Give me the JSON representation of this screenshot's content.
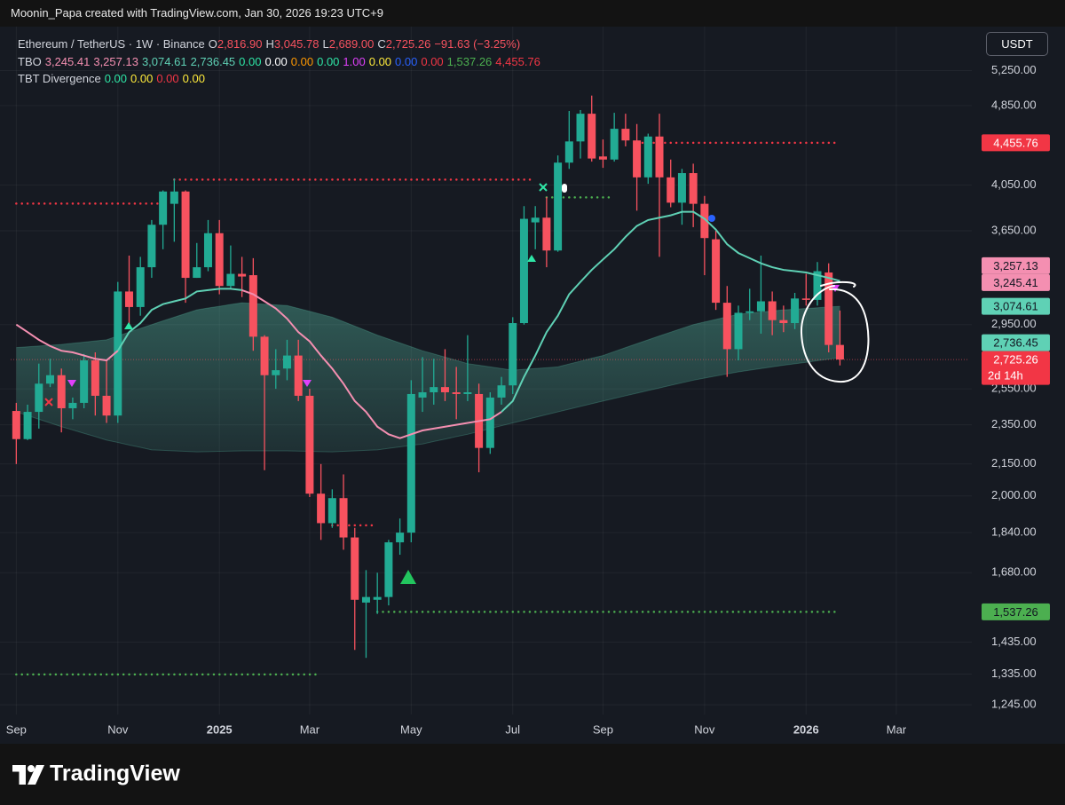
{
  "header": {
    "credit": "Moonin_Papa created with TradingView.com, Jan 30, 2026 19:23 UTC+9"
  },
  "legend": {
    "symbol": "Ethereum / TetherUS · 1W · Binance",
    "ohlc": [
      {
        "key": "O",
        "text": "2,816.90"
      },
      {
        "key": "H",
        "text": "3,045.78"
      },
      {
        "key": "L",
        "text": "2,689.00"
      },
      {
        "key": "C",
        "text": "2,725.26"
      }
    ],
    "change": "−91.63 (−3.25%)",
    "color": "#f7525f"
  },
  "indicators": [
    {
      "name": "TBO",
      "values": [
        {
          "text": "3,245.41",
          "color": "#f48fb1"
        },
        {
          "text": "3,257.13",
          "color": "#f48fb1"
        },
        {
          "text": "3,074.61",
          "color": "#5fd1b5"
        },
        {
          "text": "2,736.45",
          "color": "#5fd1b5"
        },
        {
          "text": "0.00",
          "color": "#2ee6a6"
        },
        {
          "text": "0.00",
          "color": "#ffffff"
        },
        {
          "text": "0.00",
          "color": "#ff9800"
        },
        {
          "text": "0.00",
          "color": "#2ee6a6"
        },
        {
          "text": "1.00",
          "color": "#e040fb"
        },
        {
          "text": "0.00",
          "color": "#ffeb3b"
        },
        {
          "text": "0.00",
          "color": "#2962ff"
        },
        {
          "text": "0.00",
          "color": "#f23645"
        },
        {
          "text": "1,537.26",
          "color": "#4caf50"
        },
        {
          "text": "4,455.76",
          "color": "#f23645"
        }
      ]
    },
    {
      "name": "TBT Divergence",
      "values": [
        {
          "text": "0.00",
          "color": "#2ee6a6"
        },
        {
          "text": "0.00",
          "color": "#ffeb3b"
        },
        {
          "text": "0.00",
          "color": "#f23645"
        },
        {
          "text": "0.00",
          "color": "#ffeb3b"
        }
      ]
    }
  ],
  "currency": "USDT",
  "footer": {
    "brand": "TradingView"
  },
  "chart_data": {
    "type": "candlestick",
    "log_scale": true,
    "grid": true,
    "up_color": "#22ab94",
    "down_color": "#f7525f",
    "xlim": [
      -0.5,
      83.9
    ],
    "xticks": [
      {
        "value": 0,
        "label": "Sep"
      },
      {
        "value": 9,
        "label": "Nov"
      },
      {
        "value": 18,
        "label": "2025"
      },
      {
        "value": 26,
        "label": "Mar"
      },
      {
        "value": 35,
        "label": "May"
      },
      {
        "value": 44,
        "label": "Jul"
      },
      {
        "value": 52,
        "label": "Sep"
      },
      {
        "value": 61,
        "label": "Nov"
      },
      {
        "value": 70,
        "label": "2026"
      },
      {
        "value": 78,
        "label": "Mar"
      }
    ],
    "ylim": [
      1218,
      5800
    ],
    "yticks": [
      {
        "value": 5250,
        "label": "5,250.00"
      },
      {
        "value": 4850,
        "label": "4,850.00"
      },
      {
        "value": 4050,
        "label": "4,050.00"
      },
      {
        "value": 3650,
        "label": "3,650.00"
      },
      {
        "value": 2950,
        "label": "2,950.00"
      },
      {
        "value": 2550,
        "label": "2,550.00"
      },
      {
        "value": 2350,
        "label": "2,350.00"
      },
      {
        "value": 2150,
        "label": "2,150.00"
      },
      {
        "value": 2000,
        "label": "2,000.00"
      },
      {
        "value": 1840,
        "label": "1,840.00"
      },
      {
        "value": 1680,
        "label": "1,680.00"
      },
      {
        "value": 1435,
        "label": "1,435.00"
      },
      {
        "value": 1335,
        "label": "1,335.00"
      },
      {
        "value": 1245,
        "label": "1,245.00"
      }
    ],
    "open": [
      2425,
      2275,
      2420,
      2580,
      2630,
      2440,
      2470,
      2720,
      2510,
      2400,
      3180,
      3070,
      3360,
      3700,
      3880,
      3990,
      3280,
      3360,
      3630,
      3220,
      3310,
      3300,
      2870,
      2630,
      2670,
      2750,
      2510,
      2010,
      1880,
      1990,
      1820,
      1570,
      1580,
      1590,
      1800,
      1840,
      2500,
      2530,
      2560,
      2530,
      2520,
      2520,
      2230,
      2500,
      2570,
      2960,
      3720,
      3760,
      3490,
      4260,
      4470,
      4760,
      4320,
      4290,
      4600,
      4480,
      4120,
      4520,
      4120,
      3890,
      4160,
      3880,
      3580,
      3100,
      2790,
      3030,
      3040,
      3110,
      2980,
      2960,
      3130,
      3120,
      3320,
      2816.9
    ],
    "high": [
      2470,
      2460,
      2700,
      2730,
      2670,
      2500,
      2760,
      2770,
      2720,
      3250,
      3450,
      3440,
      3740,
      4000,
      4110,
      4000,
      3550,
      3740,
      3740,
      3530,
      3440,
      3430,
      2880,
      2790,
      2850,
      2850,
      2550,
      2150,
      2030,
      2100,
      1860,
      1690,
      1680,
      1810,
      1900,
      2600,
      2740,
      2730,
      2790,
      2680,
      2880,
      2580,
      2530,
      2620,
      3000,
      3860,
      3860,
      3940,
      4330,
      4790,
      4800,
      4960,
      4490,
      4770,
      4760,
      4650,
      4550,
      4760,
      4290,
      4200,
      4250,
      3950,
      3650,
      3220,
      3080,
      3200,
      3450,
      3180,
      3080,
      3170,
      3310,
      3400,
      3390,
      3045.78
    ],
    "low": [
      2150,
      2270,
      2330,
      2560,
      2310,
      2380,
      2440,
      2400,
      2360,
      2360,
      2950,
      3010,
      3280,
      3500,
      3560,
      3100,
      3280,
      3330,
      3160,
      3200,
      3140,
      2780,
      2120,
      2550,
      2600,
      2480,
      1995,
      1810,
      1860,
      1770,
      1410,
      1385,
      1530,
      1560,
      1750,
      1800,
      2420,
      2460,
      2480,
      2380,
      2480,
      2110,
      2200,
      2460,
      2520,
      2950,
      3500,
      3360,
      3480,
      4200,
      4300,
      4270,
      4210,
      4270,
      4420,
      3820,
      4060,
      3440,
      3850,
      3700,
      3680,
      3300,
      3050,
      2620,
      2720,
      2980,
      2890,
      2880,
      2900,
      2920,
      3080,
      3080,
      2770,
      2689
    ],
    "close": [
      2275,
      2420,
      2580,
      2630,
      2440,
      2470,
      2720,
      2510,
      2400,
      3180,
      3070,
      3360,
      3700,
      3990,
      3990,
      3280,
      3360,
      3630,
      3220,
      3310,
      3290,
      2870,
      2630,
      2660,
      2750,
      2510,
      2010,
      1880,
      1990,
      1820,
      1580,
      1590,
      1590,
      1800,
      1840,
      2520,
      2530,
      2560,
      2530,
      2520,
      2530,
      2230,
      2500,
      2570,
      2960,
      3750,
      3760,
      3490,
      4260,
      4470,
      4760,
      4300,
      4290,
      4600,
      4480,
      4120,
      4520,
      4120,
      3890,
      4160,
      3880,
      3590,
      3100,
      2790,
      3030,
      3040,
      3110,
      2980,
      2960,
      3130,
      3120,
      3330,
      2816.9,
      2725.26
    ],
    "lines": [
      {
        "color": "#f48fb1",
        "values": [
          2950,
          2900,
          2850,
          2810,
          2780,
          2770,
          2750,
          2730,
          2720,
          2780,
          null,
          null,
          null,
          null,
          null,
          null,
          null,
          null,
          null,
          null,
          3190,
          3160,
          3110,
          3060,
          2990,
          2900,
          2840,
          2750,
          2670,
          2580,
          2480,
          2420,
          2340,
          2300,
          2280,
          2300,
          2320,
          2330,
          2340,
          2350,
          2360,
          2370,
          2380,
          2420,
          null,
          null,
          null,
          null,
          null,
          null,
          null,
          null,
          null,
          null,
          null,
          null,
          null,
          null,
          null,
          null,
          null,
          null,
          null,
          null,
          null,
          null,
          null,
          null,
          null,
          null,
          null,
          null,
          null,
          null
        ]
      },
      {
        "color": "#5fd1b5",
        "values": [
          null,
          null,
          null,
          null,
          null,
          null,
          null,
          null,
          null,
          2780,
          2900,
          2960,
          3050,
          3090,
          3110,
          3130,
          3180,
          3190,
          3200,
          3200,
          3190,
          null,
          null,
          null,
          null,
          null,
          null,
          null,
          null,
          null,
          null,
          null,
          null,
          null,
          null,
          null,
          null,
          null,
          null,
          null,
          null,
          null,
          null,
          2420,
          2480,
          2620,
          2750,
          2900,
          3010,
          3160,
          3250,
          3340,
          3420,
          3500,
          3600,
          3690,
          3740,
          3760,
          3780,
          3810,
          3810,
          3750,
          3660,
          3540,
          3470,
          3430,
          3390,
          3360,
          3340,
          3330,
          3320,
          3300,
          3280,
          3257.13
        ]
      }
    ],
    "band": {
      "color": "#5fd1b5",
      "upper": [
        2800,
        2805,
        2810,
        2815,
        2820,
        2828,
        2835,
        2843,
        2850,
        2875,
        2900,
        2925,
        2950,
        2975,
        3000,
        3025,
        3050,
        3063,
        3075,
        3088,
        3100,
        3095,
        3090,
        3085,
        3080,
        3060,
        3040,
        3020,
        3000,
        2970,
        2940,
        2910,
        2880,
        2855,
        2830,
        2805,
        2780,
        2760,
        2740,
        2720,
        2700,
        2690,
        2680,
        2670,
        2660,
        2665,
        2670,
        2675,
        2680,
        2698,
        2715,
        2733,
        2750,
        2775,
        2800,
        2825,
        2850,
        2875,
        2900,
        2925,
        2950,
        2968,
        2985,
        3003,
        3020,
        3028,
        3035,
        3043,
        3050,
        3055,
        3060,
        3065,
        3070,
        3074.61
      ],
      "lower": [
        2420,
        2400,
        2380,
        2360,
        2340,
        2323,
        2305,
        2288,
        2270,
        2258,
        2245,
        2233,
        2220,
        2218,
        2215,
        2213,
        2210,
        2211,
        2213,
        2214,
        2215,
        2215,
        2215,
        2215,
        2215,
        2214,
        2213,
        2211,
        2210,
        2213,
        2215,
        2218,
        2220,
        2228,
        2235,
        2243,
        2250,
        2263,
        2275,
        2288,
        2300,
        2315,
        2330,
        2345,
        2360,
        2375,
        2390,
        2405,
        2420,
        2435,
        2450,
        2465,
        2480,
        2495,
        2510,
        2525,
        2540,
        2555,
        2570,
        2585,
        2600,
        2613,
        2625,
        2638,
        2650,
        2660,
        2670,
        2680,
        2690,
        2699,
        2708,
        2718,
        2727,
        2736.45
      ]
    },
    "levels": [
      {
        "value": 3882,
        "color": "#f23645",
        "start": 0,
        "end": 13
      },
      {
        "value": 4099,
        "color": "#f23645",
        "start": 14,
        "end": 46
      },
      {
        "value": 1334,
        "color": "#4caf50",
        "start": 0,
        "end": 27
      },
      {
        "value": 1871,
        "color": "#f23645",
        "start": 28,
        "end": 32
      },
      {
        "value": 3937,
        "color": "#4caf50",
        "start": 47,
        "end": 53
      },
      {
        "value": 4455.76,
        "color": "#f23645",
        "start": 55,
        "end": 73
      },
      {
        "value": 1537.26,
        "color": "#4caf50",
        "start": 32,
        "end": 73
      }
    ],
    "price_labels": [
      {
        "value": 4455.76,
        "label": "4,455.76",
        "color": "#f23645",
        "text_color": "#ffffff"
      },
      {
        "value": 3257.13,
        "label": "3,257.13",
        "color": "#f48fb1",
        "text_color": "#131722"
      },
      {
        "value": 3245.41,
        "label": "3,245.41",
        "color": "#f48fb1",
        "text_color": "#131722"
      },
      {
        "value": 3074.61,
        "label": "3,074.61",
        "color": "#5fd1b5",
        "text_color": "#131722"
      },
      {
        "value": 2736.45,
        "label": "2,736.45",
        "color": "#5fd1b5",
        "text_color": "#131722"
      },
      {
        "value": 2725.26,
        "label": "2,725.26",
        "countdown": "2d 14h",
        "color": "#f23645",
        "text_color": "#ffffff"
      },
      {
        "value": 1537.26,
        "label": "1,537.26",
        "color": "#4caf50",
        "text_color": "#131722"
      }
    ]
  }
}
